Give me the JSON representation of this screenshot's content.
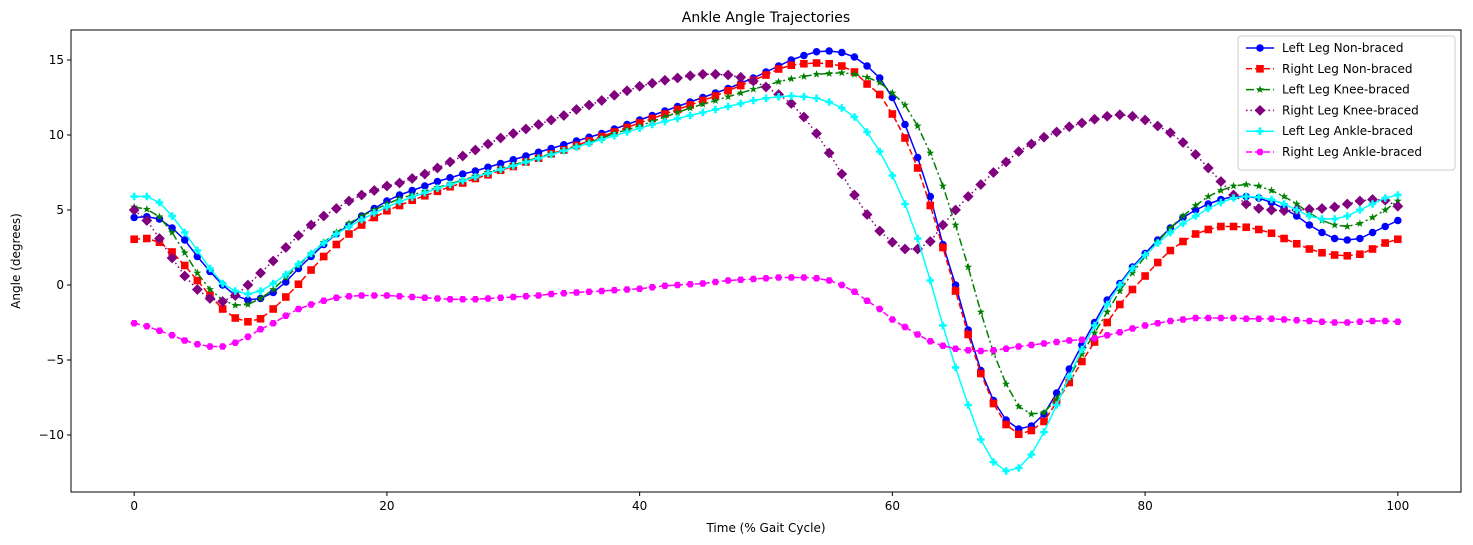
{
  "chart_data": {
    "type": "line",
    "title": "Ankle Angle Trajectories",
    "xlabel": "Time (% Gait Cycle)",
    "ylabel": "Angle (degrees)",
    "xlim": [
      -5,
      105
    ],
    "ylim": [
      -13.8,
      17
    ],
    "xticks": [
      0,
      20,
      40,
      60,
      80,
      100
    ],
    "yticks": [
      -10,
      -5,
      0,
      5,
      10,
      15
    ],
    "grid": false,
    "legend_position": "top-right",
    "x": [
      0,
      1,
      2,
      3,
      4,
      5,
      6,
      7,
      8,
      9,
      10,
      11,
      12,
      13,
      14,
      15,
      16,
      17,
      18,
      19,
      20,
      21,
      22,
      23,
      24,
      25,
      26,
      27,
      28,
      29,
      30,
      31,
      32,
      33,
      34,
      35,
      36,
      37,
      38,
      39,
      40,
      41,
      42,
      43,
      44,
      45,
      46,
      47,
      48,
      49,
      50,
      51,
      52,
      53,
      54,
      55,
      56,
      57,
      58,
      59,
      60,
      61,
      62,
      63,
      64,
      65,
      66,
      67,
      68,
      69,
      70,
      71,
      72,
      73,
      74,
      75,
      76,
      77,
      78,
      79,
      80,
      81,
      82,
      83,
      84,
      85,
      86,
      87,
      88,
      89,
      90,
      91,
      92,
      93,
      94,
      95,
      96,
      97,
      98,
      99,
      100
    ],
    "series": [
      {
        "name": "Left Leg Non-braced",
        "color": "#0000ff",
        "linestyle": "solid",
        "marker": "circle",
        "values": [
          4.5,
          4.55,
          4.4,
          3.8,
          3.0,
          1.9,
          0.9,
          0.0,
          -0.7,
          -1.0,
          -0.9,
          -0.5,
          0.2,
          1.1,
          1.9,
          2.7,
          3.4,
          4.0,
          4.6,
          5.1,
          5.6,
          6.0,
          6.3,
          6.6,
          6.9,
          7.15,
          7.4,
          7.6,
          7.85,
          8.1,
          8.35,
          8.6,
          8.85,
          9.1,
          9.35,
          9.6,
          9.85,
          10.1,
          10.4,
          10.7,
          11.0,
          11.3,
          11.6,
          11.9,
          12.2,
          12.5,
          12.8,
          13.1,
          13.45,
          13.8,
          14.2,
          14.6,
          15.0,
          15.3,
          15.55,
          15.6,
          15.5,
          15.2,
          14.6,
          13.8,
          12.5,
          10.7,
          8.5,
          5.9,
          2.7,
          0.0,
          -3.0,
          -5.7,
          -7.7,
          -9.0,
          -9.6,
          -9.4,
          -8.6,
          -7.2,
          -5.6,
          -4.0,
          -2.5,
          -1.0,
          0.1,
          1.2,
          2.1,
          3.0,
          3.8,
          4.5,
          5.0,
          5.4,
          5.7,
          5.9,
          5.9,
          5.8,
          5.5,
          5.1,
          4.6,
          4.0,
          3.5,
          3.1,
          3.0,
          3.1,
          3.5,
          3.9,
          4.3
        ]
      },
      {
        "name": "Right Leg Non-braced",
        "color": "#ff0000",
        "linestyle": "dashed",
        "marker": "square",
        "values": [
          3.05,
          3.1,
          2.85,
          2.2,
          1.3,
          0.3,
          -0.7,
          -1.6,
          -2.2,
          -2.45,
          -2.25,
          -1.6,
          -0.8,
          0.05,
          1.0,
          1.9,
          2.7,
          3.4,
          4.0,
          4.5,
          4.95,
          5.3,
          5.65,
          5.95,
          6.25,
          6.55,
          6.8,
          7.1,
          7.35,
          7.65,
          7.9,
          8.2,
          8.45,
          8.75,
          9.0,
          9.3,
          9.6,
          9.9,
          10.2,
          10.5,
          10.8,
          11.1,
          11.4,
          11.7,
          12.0,
          12.3,
          12.6,
          12.95,
          13.3,
          13.65,
          14.0,
          14.4,
          14.65,
          14.75,
          14.8,
          14.75,
          14.6,
          14.2,
          13.4,
          12.7,
          11.4,
          9.8,
          7.8,
          5.3,
          2.5,
          -0.4,
          -3.3,
          -5.9,
          -7.9,
          -9.3,
          -9.95,
          -9.7,
          -9.1,
          -7.8,
          -6.5,
          -5.1,
          -3.8,
          -2.5,
          -1.3,
          -0.3,
          0.6,
          1.5,
          2.3,
          2.9,
          3.4,
          3.7,
          3.9,
          3.9,
          3.85,
          3.7,
          3.45,
          3.1,
          2.75,
          2.4,
          2.15,
          2.0,
          1.95,
          2.05,
          2.4,
          2.8,
          3.05
        ]
      },
      {
        "name": "Left Leg Knee-braced",
        "color": "#008000",
        "linestyle": "dashdot",
        "marker": "star",
        "values": [
          5.2,
          5.05,
          4.55,
          3.5,
          2.15,
          0.8,
          -0.3,
          -1.0,
          -1.35,
          -1.3,
          -0.9,
          -0.3,
          0.5,
          1.3,
          2.1,
          2.85,
          3.5,
          4.1,
          4.6,
          5.0,
          5.4,
          5.75,
          6.0,
          6.25,
          6.5,
          6.75,
          7.0,
          7.25,
          7.5,
          7.75,
          8.0,
          8.25,
          8.5,
          8.75,
          9.0,
          9.25,
          9.5,
          9.8,
          10.1,
          10.35,
          10.6,
          10.9,
          11.2,
          11.5,
          11.8,
          12.05,
          12.3,
          12.55,
          12.8,
          13.05,
          13.3,
          13.55,
          13.75,
          13.9,
          14.05,
          14.1,
          14.15,
          14.05,
          13.85,
          13.5,
          12.8,
          12.0,
          10.6,
          8.8,
          6.6,
          4.0,
          1.2,
          -1.8,
          -4.5,
          -6.6,
          -8.1,
          -8.6,
          -8.5,
          -7.6,
          -6.2,
          -4.6,
          -3.2,
          -1.8,
          -0.4,
          0.8,
          1.9,
          2.9,
          3.8,
          4.6,
          5.3,
          5.9,
          6.3,
          6.6,
          6.7,
          6.6,
          6.3,
          5.9,
          5.4,
          4.8,
          4.3,
          4.0,
          3.9,
          4.1,
          4.5,
          5.0,
          5.6
        ]
      },
      {
        "name": "Right Leg Knee-braced",
        "color": "#800080",
        "linestyle": "dotted",
        "marker": "diamond",
        "values": [
          5.0,
          4.3,
          3.1,
          1.8,
          0.6,
          -0.3,
          -0.9,
          -1.1,
          -0.7,
          0.0,
          0.8,
          1.6,
          2.5,
          3.3,
          4.0,
          4.6,
          5.1,
          5.6,
          6.0,
          6.3,
          6.6,
          6.8,
          7.1,
          7.4,
          7.8,
          8.2,
          8.6,
          9.0,
          9.4,
          9.8,
          10.1,
          10.4,
          10.7,
          11.0,
          11.3,
          11.7,
          12.0,
          12.3,
          12.65,
          12.95,
          13.25,
          13.45,
          13.65,
          13.8,
          13.95,
          14.05,
          14.05,
          14.0,
          13.85,
          13.6,
          13.2,
          12.7,
          12.1,
          11.2,
          10.1,
          8.8,
          7.4,
          6.0,
          4.7,
          3.6,
          2.85,
          2.4,
          2.4,
          2.9,
          4.0,
          5.0,
          5.9,
          6.7,
          7.5,
          8.2,
          8.9,
          9.4,
          9.85,
          10.2,
          10.55,
          10.8,
          11.05,
          11.25,
          11.35,
          11.25,
          11.0,
          10.6,
          10.15,
          9.5,
          8.7,
          7.8,
          6.9,
          6.0,
          5.4,
          5.1,
          5.0,
          4.95,
          5.0,
          5.05,
          5.1,
          5.2,
          5.4,
          5.6,
          5.7,
          5.65,
          5.25
        ]
      },
      {
        "name": "Left Leg Ankle-braced",
        "color": "#00ffff",
        "linestyle": "solid",
        "marker": "plus",
        "values": [
          5.9,
          5.9,
          5.5,
          4.6,
          3.5,
          2.3,
          1.1,
          0.1,
          -0.4,
          -0.6,
          -0.4,
          0.1,
          0.7,
          1.4,
          2.1,
          2.8,
          3.4,
          3.9,
          4.35,
          4.8,
          5.2,
          5.55,
          5.85,
          6.15,
          6.45,
          6.7,
          6.95,
          7.2,
          7.45,
          7.7,
          7.95,
          8.2,
          8.45,
          8.7,
          8.95,
          9.2,
          9.45,
          9.7,
          9.95,
          10.2,
          10.45,
          10.7,
          10.9,
          11.1,
          11.3,
          11.5,
          11.7,
          11.9,
          12.1,
          12.3,
          12.45,
          12.55,
          12.6,
          12.55,
          12.45,
          12.2,
          11.8,
          11.2,
          10.2,
          8.9,
          7.3,
          5.4,
          3.1,
          0.3,
          -2.7,
          -5.5,
          -8.0,
          -10.3,
          -11.8,
          -12.4,
          -12.2,
          -11.3,
          -9.8,
          -8.0,
          -6.1,
          -4.3,
          -2.7,
          -1.3,
          0.0,
          1.1,
          2.0,
          2.8,
          3.5,
          4.1,
          4.6,
          5.1,
          5.5,
          5.8,
          5.9,
          5.85,
          5.7,
          5.4,
          5.0,
          4.6,
          4.4,
          4.4,
          4.6,
          5.0,
          5.4,
          5.8,
          6.0
        ]
      },
      {
        "name": "Right Leg Ankle-braced",
        "color": "#ff00ff",
        "linestyle": "dashed",
        "marker": "hexagon",
        "values": [
          -2.55,
          -2.75,
          -3.05,
          -3.35,
          -3.7,
          -3.95,
          -4.1,
          -4.1,
          -3.85,
          -3.45,
          -2.95,
          -2.55,
          -2.05,
          -1.6,
          -1.3,
          -1.05,
          -0.85,
          -0.75,
          -0.7,
          -0.7,
          -0.7,
          -0.75,
          -0.8,
          -0.85,
          -0.9,
          -0.95,
          -0.95,
          -0.95,
          -0.9,
          -0.85,
          -0.8,
          -0.75,
          -0.7,
          -0.6,
          -0.55,
          -0.5,
          -0.45,
          -0.4,
          -0.35,
          -0.3,
          -0.25,
          -0.15,
          -0.05,
          0.0,
          0.05,
          0.1,
          0.2,
          0.3,
          0.35,
          0.4,
          0.45,
          0.5,
          0.5,
          0.5,
          0.45,
          0.3,
          0.0,
          -0.45,
          -1.05,
          -1.6,
          -2.3,
          -2.8,
          -3.3,
          -3.75,
          -4.05,
          -4.25,
          -4.35,
          -4.4,
          -4.35,
          -4.25,
          -4.1,
          -4.0,
          -3.9,
          -3.8,
          -3.7,
          -3.65,
          -3.55,
          -3.35,
          -3.15,
          -2.9,
          -2.7,
          -2.55,
          -2.4,
          -2.3,
          -2.2,
          -2.2,
          -2.2,
          -2.2,
          -2.25,
          -2.25,
          -2.25,
          -2.3,
          -2.35,
          -2.4,
          -2.45,
          -2.5,
          -2.5,
          -2.45,
          -2.4,
          -2.4,
          -2.45
        ]
      }
    ]
  }
}
